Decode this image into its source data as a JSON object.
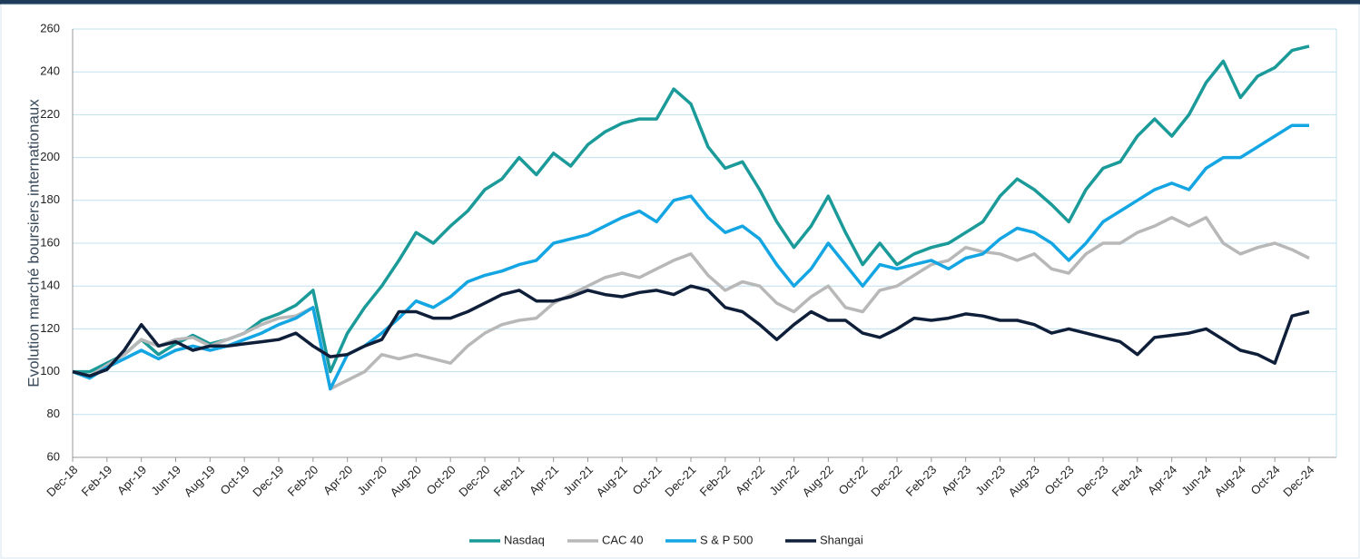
{
  "chart_data": {
    "type": "line",
    "y_label": "Evolution marché boursiers internationaux",
    "categories": [
      "Dec-18",
      null,
      "Feb-19",
      null,
      "Apr-19",
      null,
      "Jun-19",
      null,
      "Aug-19",
      null,
      "Oct-19",
      null,
      "Dec-19",
      null,
      "Feb-20",
      null,
      "Apr-20",
      null,
      "Jun-20",
      null,
      "Aug-20",
      null,
      "Oct-20",
      null,
      "Dec-20",
      null,
      "Feb-21",
      null,
      "Apr-21",
      null,
      "Jun-21",
      null,
      "Aug-21",
      null,
      "Oct-21",
      null,
      "Dec-21",
      null,
      "Feb-22",
      null,
      "Apr-22",
      null,
      "Jun-22",
      null,
      "Aug-22",
      null,
      "Oct-22",
      null,
      "Dec-22",
      null,
      "Feb-23",
      null,
      "Apr-23",
      null,
      "Jun-23",
      null,
      "Aug-23",
      null,
      "Oct-23",
      null,
      "Dec-23",
      null,
      "Feb-24",
      null,
      "Apr-24",
      null,
      "Jun-24",
      null,
      "Aug-24",
      null,
      "Oct-24",
      null,
      "Dec-24"
    ],
    "series": [
      {
        "name": "Nasdaq",
        "color": "#1a9a98",
        "values": [
          100,
          100,
          104,
          108,
          115,
          108,
          113,
          117,
          113,
          115,
          118,
          124,
          127,
          131,
          138,
          100,
          118,
          130,
          140,
          152,
          165,
          160,
          168,
          175,
          185,
          190,
          200,
          192,
          202,
          196,
          206,
          212,
          216,
          218,
          218,
          232,
          225,
          205,
          195,
          198,
          185,
          170,
          158,
          168,
          182,
          165,
          150,
          160,
          150,
          155,
          158,
          160,
          165,
          170,
          182,
          190,
          185,
          178,
          170,
          185,
          195,
          198,
          210,
          218,
          210,
          220,
          235,
          245,
          228,
          238,
          242,
          250,
          252
        ]
      },
      {
        "name": "CAC 40",
        "color": "#b8b8b8",
        "values": [
          100,
          98,
          103,
          108,
          115,
          112,
          115,
          116,
          112,
          115,
          118,
          122,
          125,
          126,
          130,
          92,
          96,
          100,
          108,
          106,
          108,
          106,
          104,
          112,
          118,
          122,
          124,
          125,
          132,
          136,
          140,
          144,
          146,
          144,
          148,
          152,
          155,
          145,
          138,
          142,
          140,
          132,
          128,
          135,
          140,
          130,
          128,
          138,
          140,
          145,
          150,
          152,
          158,
          156,
          155,
          152,
          155,
          148,
          146,
          155,
          160,
          160,
          165,
          168,
          172,
          168,
          172,
          160,
          155,
          158,
          160,
          157,
          153
        ]
      },
      {
        "name": "S & P 500",
        "color": "#14a5e3",
        "values": [
          100,
          97,
          102,
          106,
          110,
          106,
          110,
          112,
          110,
          112,
          115,
          118,
          122,
          125,
          130,
          92,
          108,
          112,
          118,
          125,
          133,
          130,
          135,
          142,
          145,
          147,
          150,
          152,
          160,
          162,
          164,
          168,
          172,
          175,
          170,
          180,
          182,
          172,
          165,
          168,
          162,
          150,
          140,
          148,
          160,
          150,
          140,
          150,
          148,
          150,
          152,
          148,
          153,
          155,
          162,
          167,
          165,
          160,
          152,
          160,
          170,
          175,
          180,
          185,
          188,
          185,
          195,
          200,
          200,
          205,
          210,
          215,
          215
        ]
      },
      {
        "name": "Shangai",
        "color": "#0f1f3a",
        "values": [
          100,
          98,
          101,
          110,
          122,
          112,
          114,
          110,
          112,
          112,
          113,
          114,
          115,
          118,
          112,
          107,
          108,
          112,
          115,
          128,
          128,
          125,
          125,
          128,
          132,
          136,
          138,
          133,
          133,
          135,
          138,
          136,
          135,
          137,
          138,
          136,
          140,
          138,
          130,
          128,
          122,
          115,
          122,
          128,
          124,
          124,
          118,
          116,
          120,
          125,
          124,
          125,
          127,
          126,
          124,
          124,
          122,
          118,
          120,
          118,
          116,
          114,
          108,
          116,
          117,
          118,
          120,
          115,
          110,
          108,
          104,
          126,
          128
        ]
      }
    ],
    "ylim": [
      60,
      260
    ],
    "yticks": [
      60,
      80,
      100,
      120,
      140,
      160,
      180,
      200,
      220,
      240,
      260
    ],
    "grid": true,
    "legend": "bottom"
  }
}
